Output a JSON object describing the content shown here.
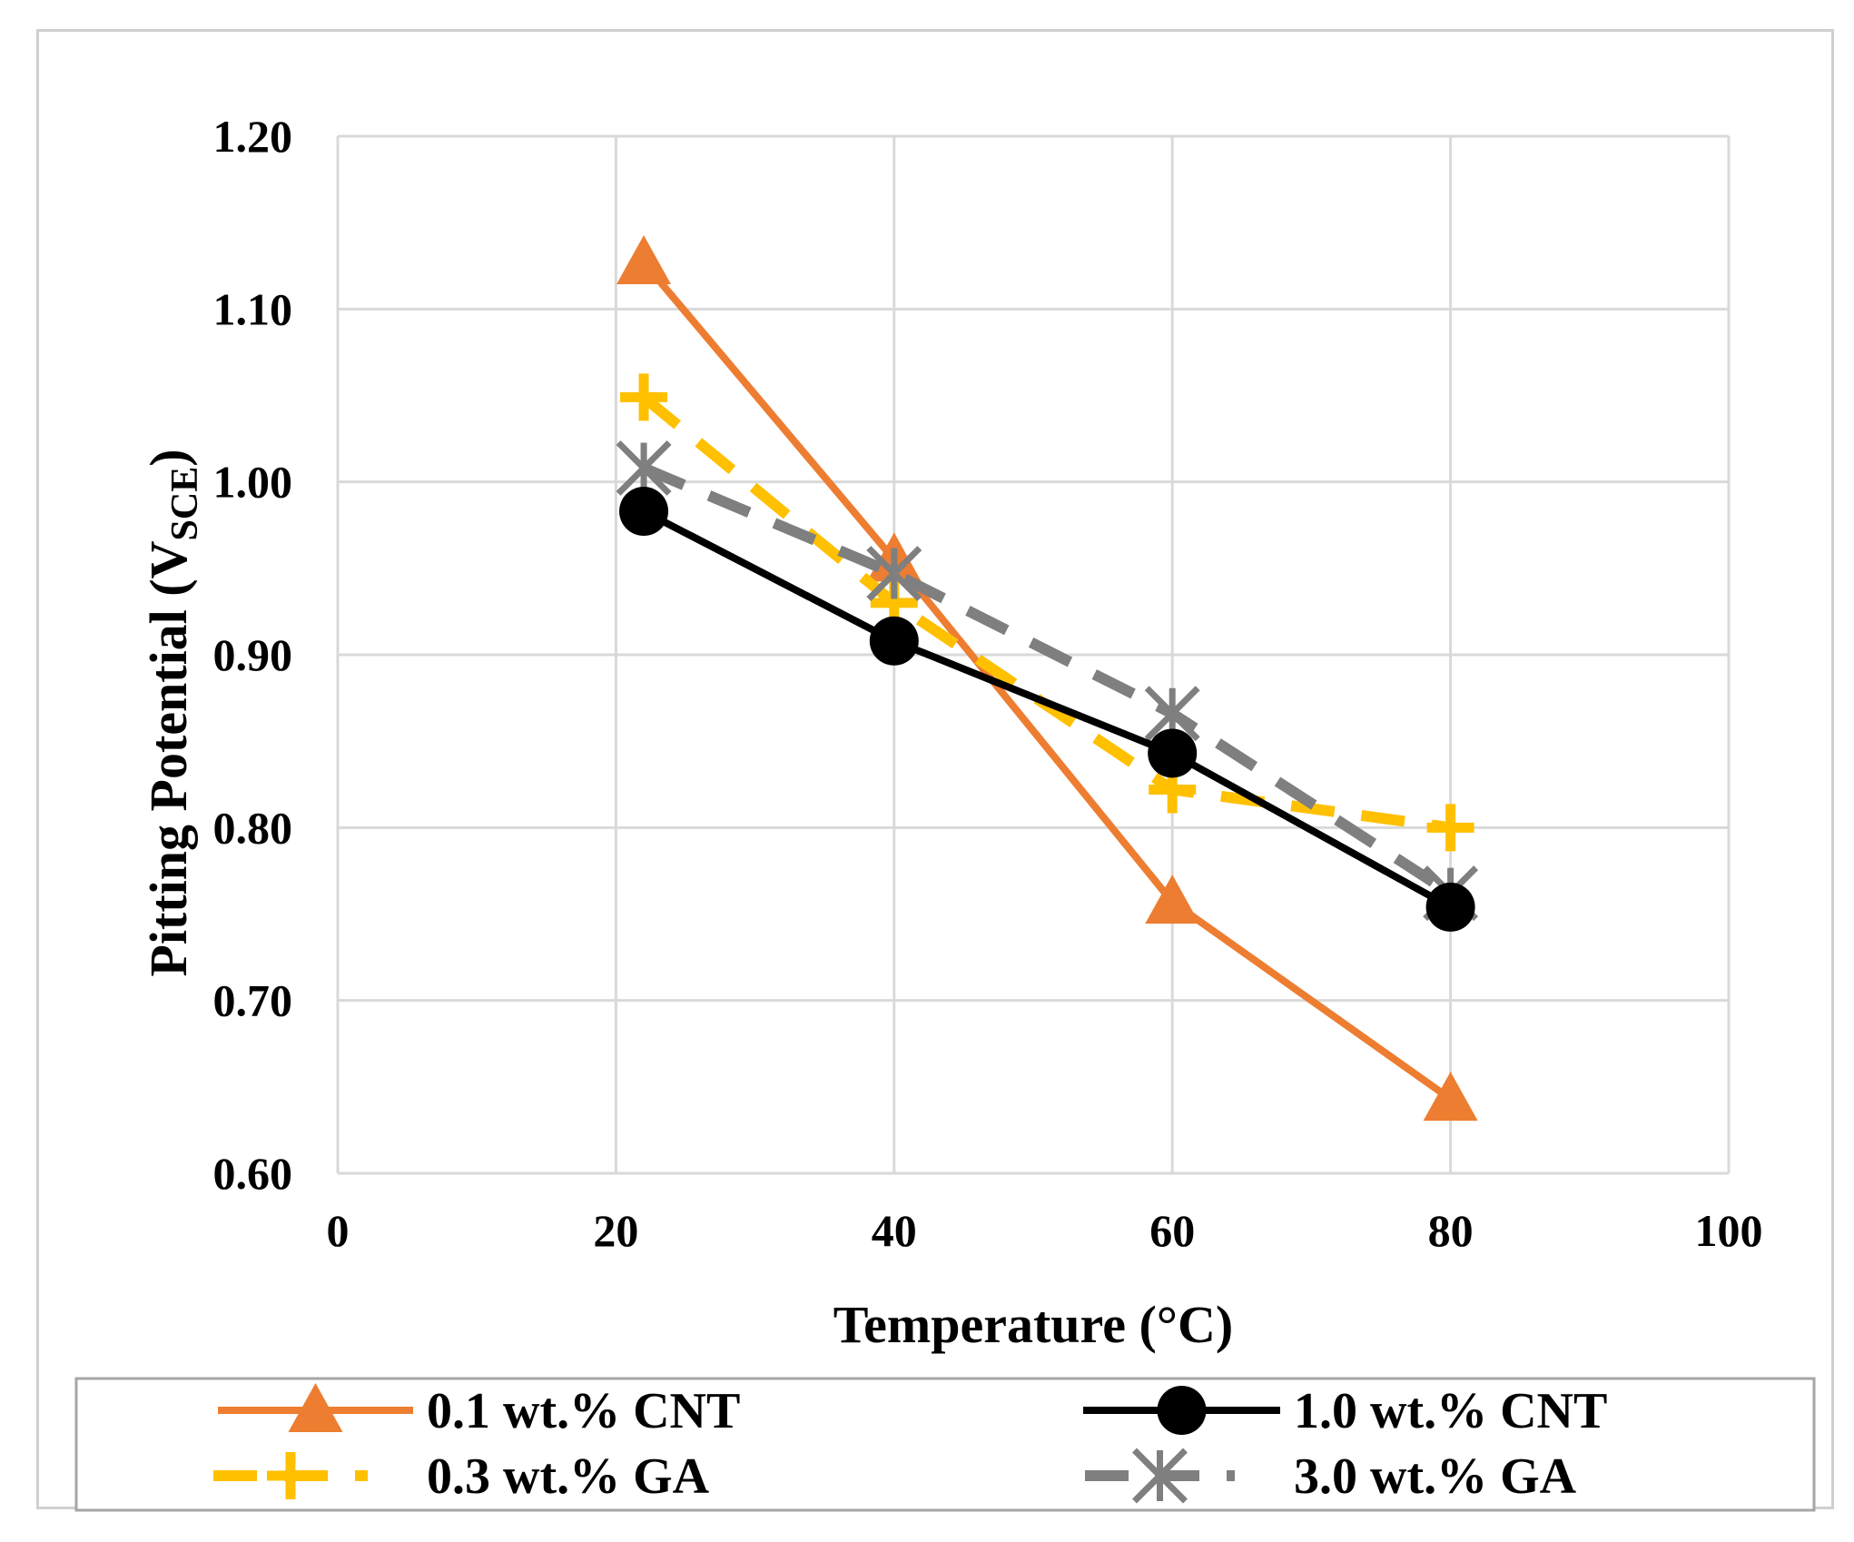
{
  "chart_data": {
    "type": "line",
    "title": "",
    "xlabel": "Temperature (°C)",
    "ylabel": "Pitting Potential (V",
    "ylabel_subscript": "SCE",
    "ylabel_close": ")",
    "xlim": [
      0,
      100
    ],
    "ylim": [
      0.6,
      1.2
    ],
    "xticks": [
      0,
      20,
      40,
      60,
      80,
      100
    ],
    "xtick_labels": [
      "0",
      "20",
      "40",
      "60",
      "80",
      "100"
    ],
    "yticks": [
      0.6,
      0.7,
      0.8,
      0.9,
      1.0,
      1.1,
      1.2
    ],
    "ytick_labels": [
      "0.60",
      "0.70",
      "0.80",
      "0.90",
      "1.00",
      "1.10",
      "1.20"
    ],
    "grid": true,
    "legend_position": "bottom",
    "series": [
      {
        "name": "0.1 wt.% CNT",
        "color": "#ED7D31",
        "dash": "solid",
        "marker": "triangle",
        "x": [
          22,
          40,
          60,
          80
        ],
        "y": [
          1.127,
          0.955,
          0.757,
          0.643
        ]
      },
      {
        "name": "1.0 wt.% CNT",
        "color": "#000000",
        "dash": "solid",
        "marker": "circle",
        "x": [
          22,
          40,
          60,
          80
        ],
        "y": [
          0.983,
          0.908,
          0.843,
          0.754
        ]
      },
      {
        "name": "0.3 wt.% GA",
        "color": "#FFC000",
        "dash": "dashed",
        "marker": "plus",
        "x": [
          22,
          40,
          60,
          80
        ],
        "y": [
          1.049,
          0.93,
          0.822,
          0.8
        ]
      },
      {
        "name": "3.0 wt.% GA",
        "color": "#7F7F7F",
        "dash": "dashed",
        "marker": "asterisk",
        "x": [
          22,
          40,
          60,
          80
        ],
        "y": [
          1.008,
          0.947,
          0.866,
          0.762
        ]
      }
    ]
  }
}
